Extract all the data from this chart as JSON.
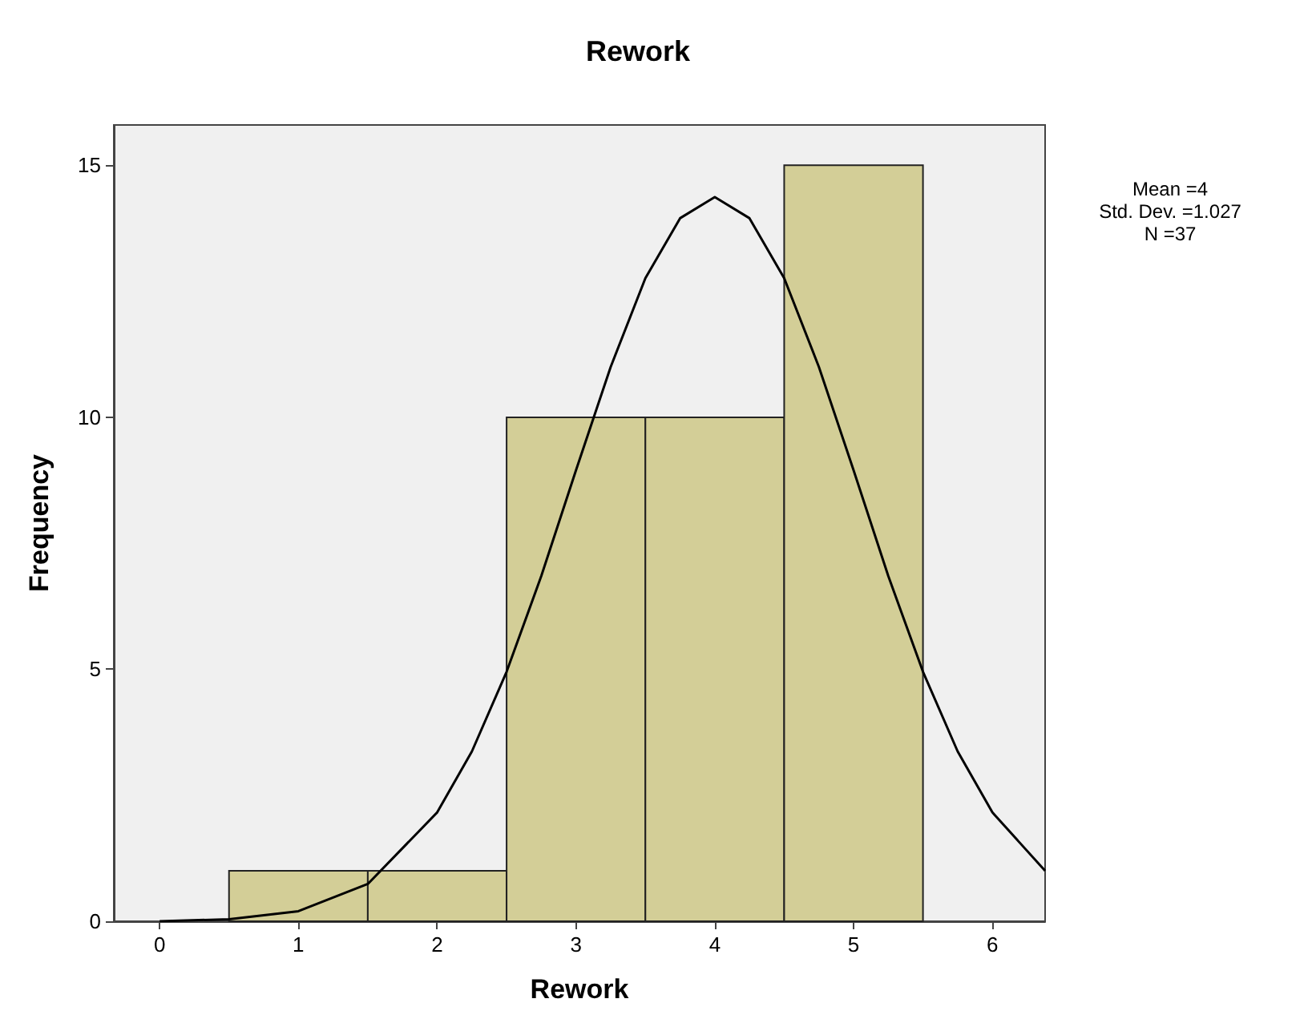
{
  "chart_data": {
    "type": "histogram",
    "title": "Rework",
    "xlabel": "Rework",
    "ylabel": "Frequency",
    "bins": [
      0.5,
      1.5,
      2.5,
      3.5,
      4.5,
      5.5
    ],
    "values": [
      1,
      1,
      10,
      10,
      15
    ],
    "color": "#d3ce97",
    "series": [
      {
        "type": "line",
        "color": "#000000",
        "x": [
          0,
          0.5,
          1,
          1.5,
          2,
          2.25,
          2.5,
          2.75,
          3,
          3.25,
          3.5,
          3.75,
          4,
          4.25,
          4.5,
          4.75,
          5,
          5.25,
          5.5,
          5.75,
          6,
          6.38
        ],
        "values": [
          0.0,
          0.04,
          0.2,
          0.74,
          2.16,
          3.37,
          4.95,
          6.85,
          8.95,
          11.0,
          12.76,
          13.95,
          14.37,
          13.95,
          12.76,
          11.0,
          8.95,
          6.85,
          4.95,
          3.37,
          2.16,
          1.0
        ]
      }
    ],
    "xlim": [
      -0.33,
      6.38
    ],
    "xticks": [
      0,
      1,
      2,
      3,
      4,
      5,
      6
    ],
    "ylim": [
      0,
      15.8
    ],
    "yticks": [
      0,
      5,
      10,
      15
    ],
    "grid": false,
    "annotations": [
      "Mean =4",
      "Std. Dev. =1.027",
      "N =37"
    ]
  }
}
